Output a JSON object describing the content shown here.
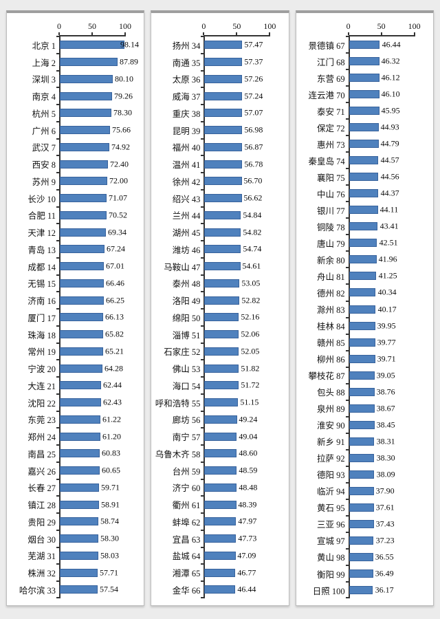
{
  "colors": {
    "page_background": "#ececec",
    "panel_background": "#ffffff",
    "panel_border": "#bdbdbd",
    "panel_top_border": "#9e9e9e",
    "bar_fill": "#4f81bd",
    "bar_border": "#36619b",
    "axis": "#333333",
    "text": "#111111"
  },
  "chart_data": [
    {
      "type": "bar",
      "orientation": "horizontal",
      "xlim": [
        0,
        100
      ],
      "ticks": [
        0,
        50,
        100
      ],
      "tick_labels": [
        "0",
        "50",
        "100"
      ],
      "grid": false,
      "legend": false,
      "categories": [
        "北京 1",
        "上海 2",
        "深圳 3",
        "南京 4",
        "杭州 5",
        "广州 6",
        "武汉 7",
        "西安 8",
        "苏州 9",
        "长沙 10",
        "合肥 11",
        "天津 12",
        "青岛 13",
        "成都 14",
        "无锡 15",
        "济南 16",
        "厦门 17",
        "珠海 18",
        "常州 19",
        "宁波 20",
        "大连 21",
        "沈阳 22",
        "东莞 23",
        "郑州 24",
        "南昌 25",
        "嘉兴 26",
        "长春 27",
        "镇江 28",
        "贵阳 29",
        "烟台 30",
        "芜湖 31",
        "株洲 32",
        "哈尔滨 33"
      ],
      "values": [
        98.14,
        87.89,
        80.1,
        79.26,
        78.3,
        75.66,
        74.92,
        72.4,
        72.0,
        71.07,
        70.52,
        69.34,
        67.24,
        67.01,
        66.46,
        66.25,
        66.13,
        65.82,
        65.21,
        64.28,
        62.44,
        62.43,
        61.22,
        61.2,
        60.83,
        60.65,
        59.71,
        58.91,
        58.74,
        58.3,
        58.03,
        57.71,
        57.54
      ]
    },
    {
      "type": "bar",
      "orientation": "horizontal",
      "xlim": [
        0,
        100
      ],
      "ticks": [
        0,
        50,
        100
      ],
      "tick_labels": [
        "0",
        "50",
        "100"
      ],
      "grid": false,
      "legend": false,
      "categories": [
        "扬州 34",
        "南通 35",
        "太原 36",
        "威海 37",
        "重庆 38",
        "昆明 39",
        "福州 40",
        "温州 41",
        "徐州 42",
        "绍兴 43",
        "兰州 44",
        "湖州 45",
        "潍坊 46",
        "马鞍山 47",
        "泰州 48",
        "洛阳 49",
        "绵阳 50",
        "淄博 51",
        "石家庄 52",
        "佛山 53",
        "海口 54",
        "呼和浩特 55",
        "廊坊 56",
        "南宁 57",
        "乌鲁木齐 58",
        "台州 59",
        "济宁 60",
        "衢州 61",
        "蚌埠 62",
        "宜昌 63",
        "盐城 64",
        "湘潭 65",
        "金华 66"
      ],
      "values": [
        57.47,
        57.37,
        57.26,
        57.24,
        57.07,
        56.98,
        56.87,
        56.78,
        56.7,
        56.62,
        54.84,
        54.82,
        54.74,
        54.61,
        53.05,
        52.82,
        52.16,
        52.06,
        52.05,
        51.82,
        51.72,
        51.15,
        49.24,
        49.04,
        48.6,
        48.59,
        48.48,
        48.39,
        47.97,
        47.73,
        47.09,
        46.77,
        46.44
      ]
    },
    {
      "type": "bar",
      "orientation": "horizontal",
      "xlim": [
        0,
        100
      ],
      "ticks": [
        0,
        50,
        100
      ],
      "tick_labels": [
        "0",
        "50",
        "100"
      ],
      "grid": false,
      "legend": false,
      "categories": [
        "景德镇 67",
        "江门 68",
        "东营 69",
        "连云港 70",
        "泰安 71",
        "保定 72",
        "惠州 73",
        "秦皇岛 74",
        "襄阳 75",
        "中山 76",
        "银川 77",
        "铜陵 78",
        "唐山 79",
        "新余 80",
        "舟山 81",
        "德州 82",
        "滁州 83",
        "桂林 84",
        "赣州 85",
        "柳州 86",
        "攀枝花 87",
        "包头 88",
        "泉州 89",
        "淮安 90",
        "新乡 91",
        "拉萨 92",
        "德阳 93",
        "临沂 94",
        "黄石 95",
        "三亚 96",
        "宣城 97",
        "黄山 98",
        "衡阳 99",
        "日照 100"
      ],
      "values": [
        46.44,
        46.32,
        46.12,
        46.1,
        45.95,
        44.93,
        44.79,
        44.57,
        44.56,
        44.37,
        44.11,
        43.41,
        42.51,
        41.96,
        41.25,
        40.34,
        40.17,
        39.95,
        39.77,
        39.71,
        39.05,
        38.76,
        38.67,
        38.45,
        38.31,
        38.3,
        38.09,
        37.9,
        37.61,
        37.43,
        37.23,
        36.55,
        36.49,
        36.17
      ]
    }
  ]
}
